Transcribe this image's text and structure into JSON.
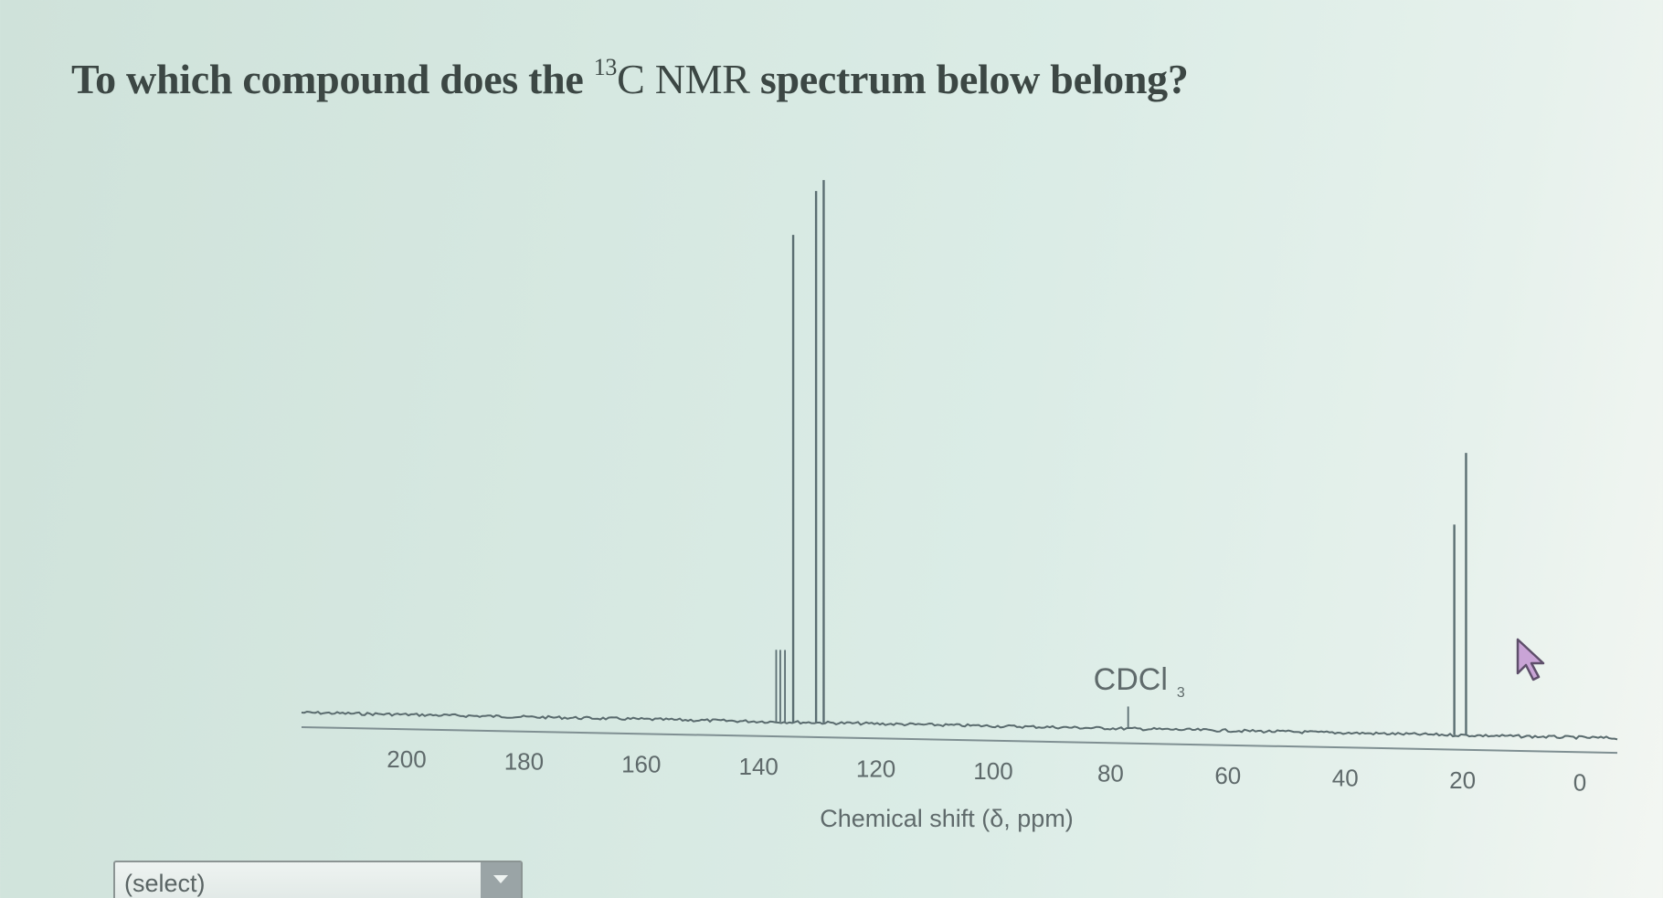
{
  "question": {
    "prefix": "To which compound does the ",
    "superscript": "13",
    "nucleus": "C NMR",
    "suffix": " spectrum below belong?"
  },
  "select": {
    "value": "(select)"
  },
  "icons": {
    "cursor": "mouse-pointer-icon",
    "dropdown": "chevron-down-icon"
  },
  "chart_data": {
    "type": "line",
    "xlabel": "Chemical shift (δ, ppm)",
    "x_reversed": true,
    "xlim": [
      0,
      210
    ],
    "x_ticks": [
      200,
      180,
      160,
      140,
      120,
      100,
      80,
      60,
      40,
      20,
      0
    ],
    "ylim": [
      0,
      1
    ],
    "grid": false,
    "peaks": [
      {
        "ppm": 137.0,
        "height": 0.13
      },
      {
        "ppm": 136.3,
        "height": 0.13
      },
      {
        "ppm": 135.5,
        "height": 0.13
      },
      {
        "ppm": 134.1,
        "height": 0.88
      },
      {
        "ppm": 130.2,
        "height": 0.96
      },
      {
        "ppm": 128.9,
        "height": 0.98
      },
      {
        "ppm": 77.0,
        "height": 0.04
      },
      {
        "ppm": 21.4,
        "height": 0.38
      },
      {
        "ppm": 19.4,
        "height": 0.51
      }
    ],
    "annotations": [
      {
        "text": "CDCl",
        "subscript": "3",
        "ppm": 77.0
      }
    ]
  }
}
